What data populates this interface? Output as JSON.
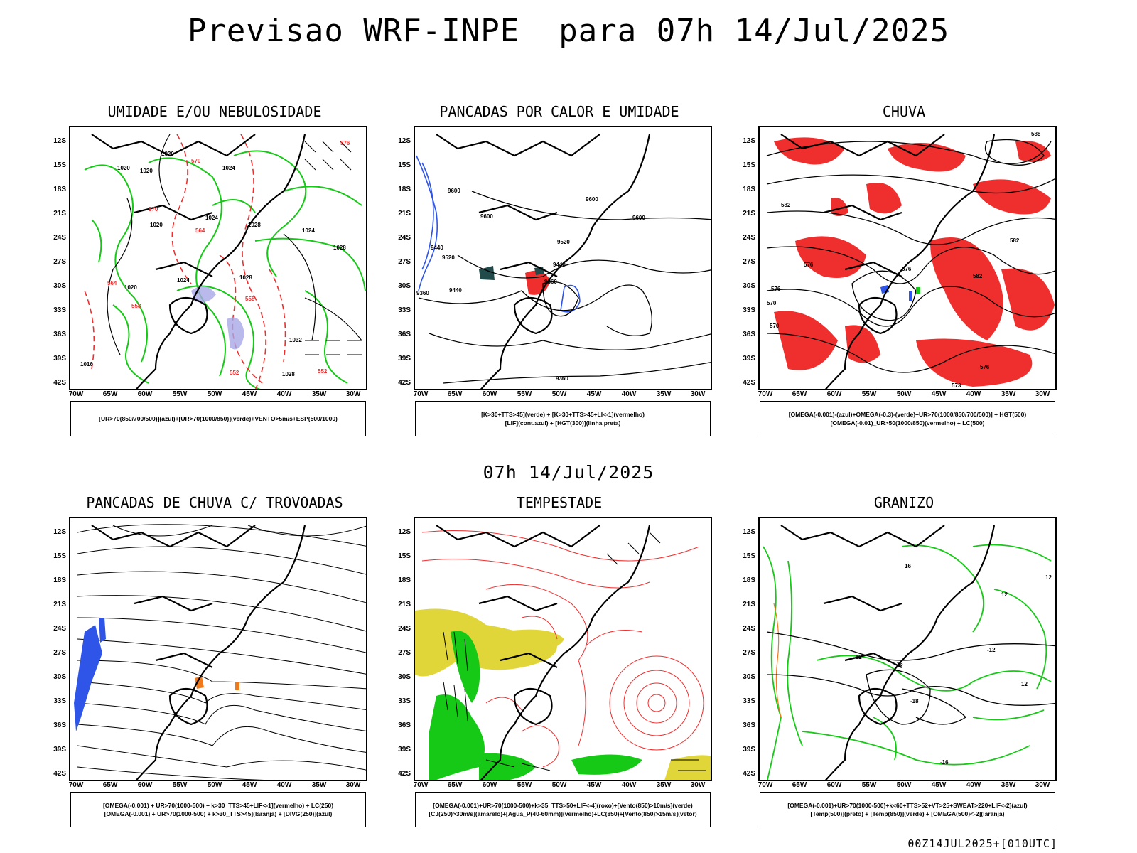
{
  "header": {
    "title": "Previsao WRF-INPE  para 07h 14/Jul/2025",
    "mid_title": "07h 14/Jul/2025",
    "footer": "00Z14JUL2025+[010UTC]"
  },
  "axes": {
    "lat_labels": [
      "12S",
      "15S",
      "18S",
      "21S",
      "24S",
      "27S",
      "30S",
      "33S",
      "36S",
      "39S",
      "42S"
    ],
    "lon_labels": [
      "70W",
      "65W",
      "60W",
      "55W",
      "50W",
      "45W",
      "40W",
      "35W",
      "30W"
    ]
  },
  "panels": [
    {
      "title": "UMIDADE E/OU NEBULOSIDADE",
      "legend": [
        "[UR>70(850/700/500)](azul)+[UR>70(1000/850)](verde)+VENTO>5m/s+ESP(500/1000)"
      ],
      "contour_labels": [
        "1020",
        "1020",
        "1020",
        "1020",
        "1024",
        "1024",
        "1024",
        "1028",
        "1028",
        "1028",
        "1024",
        "1020",
        "1016",
        "1032",
        "1028",
        "576",
        "570",
        "570",
        "564",
        "564",
        "558",
        "558",
        "552",
        "552"
      ]
    },
    {
      "title": "PANCADAS POR CALOR E UMIDADE",
      "legend": [
        "[K>30+TTS>45](verde) + [K>30+TTS>45+LI<-1](vermelho)",
        "[LIF](cont.azul) + [HGT(300)](linha preta)"
      ],
      "contour_labels": [
        "9600",
        "9600",
        "9600",
        "9600",
        "9520",
        "9520",
        "9440",
        "9440",
        "9440",
        "9360",
        "9360",
        "9360"
      ]
    },
    {
      "title": "CHUVA",
      "legend": [
        "[OMEGA(-0.001)-(azul)+OMEGA(-0.3)-(verde)+UR>70(1000/850/700/500)] + HGT(500)",
        "[OMEGA(-0.01)_UR>50(1000/850)(vermelho) + LC(500)"
      ],
      "contour_labels": [
        "588",
        "582",
        "576",
        "576",
        "576",
        "570",
        "570",
        "582",
        "582",
        "576",
        "573"
      ]
    },
    {
      "title": "PANCADAS DE CHUVA C/ TROVOADAS",
      "legend": [
        "[OMEGA(-0.001) + UR>70(1000-500) + k>30_TTS>45+LIF<-1](vermelho) + LC(250)",
        "[OMEGA(-0.001) + UR>70(1000-500) + k>30_TTS>45](laranja) + [DIVG(250)](azul)"
      ]
    },
    {
      "title": "TEMPESTADE",
      "legend": [
        "[OMEGA(-0.001)+UR>70(1000-500)+k>35_TTS>50+LIF<-4](roxo)+[Vento(850)>10m/s](verde)",
        "[CJ(250)>30m/s](amarelo)+[Agua_P(40-60mm)](vermelho)+LC(850)+[Vento(850)>15m/s](vetor)"
      ]
    },
    {
      "title": "GRANIZO",
      "legend": [
        "[OMEGA(-0.001)+UR>70(1000-500)+k<60+TTS>52+VT>25+SWEAT>220+LIF<-2](azul)",
        "[Temp(500)](preto) + [Temp(850)](verde) + [OMEGA(500)<-2](laranja)"
      ],
      "contour_labels": [
        "-12",
        "-16",
        "-18",
        "-12",
        "-16",
        "12",
        "12",
        "12",
        "16"
      ]
    }
  ],
  "colors": {
    "coast": "#000000",
    "green": "#16c916",
    "red": "#ef2e2e",
    "blue": "#2f55e8",
    "yellow": "#e0d63a",
    "dark_teal": "#214a4a",
    "lavender": "#a8a8e8",
    "orange": "#f07a1a"
  }
}
